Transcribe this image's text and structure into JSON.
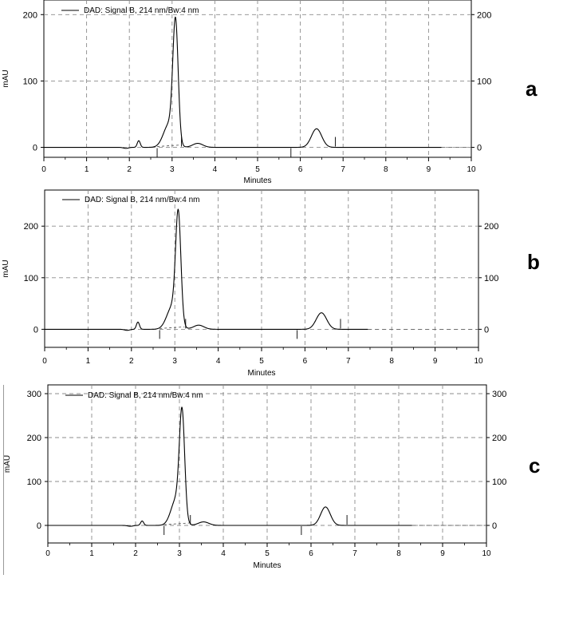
{
  "panel_labels": [
    "a",
    "b",
    "c"
  ],
  "chart_data": [
    {
      "type": "line",
      "panel": "a",
      "legend": "DAD: Signal B, 214 nm/Bw:4 nm",
      "xlabel": "Minutes",
      "ylabel": "mAU",
      "xlim": [
        0,
        10
      ],
      "ylim": [
        -15,
        222
      ],
      "x_ticks": [
        0,
        1,
        2,
        3,
        4,
        5,
        6,
        7,
        8,
        9,
        10
      ],
      "y_ticks": [
        0,
        100,
        200
      ],
      "grid": true,
      "trace_end": 9.3,
      "series": [
        {
          "name": "DAD: Signal B, 214 nm/Bw:4 nm",
          "peaks": [
            {
              "rt": 2.22,
              "height": 10,
              "sigma": 0.035
            },
            {
              "rt": 2.93,
              "height": 35,
              "sigma": 0.13
            },
            {
              "rt": 3.08,
              "height": 178,
              "sigma": 0.062
            },
            {
              "rt": 3.6,
              "height": 6,
              "sigma": 0.12
            },
            {
              "rt": 6.38,
              "height": 28,
              "sigma": 0.12
            }
          ],
          "dip": {
            "rt": 1.92,
            "depth": -1.5,
            "sigma": 0.06
          }
        }
      ],
      "integration_marks": [
        2.65,
        3.22,
        5.78,
        6.82
      ]
    },
    {
      "type": "line",
      "panel": "b",
      "legend": "DAD: Signal B, 214 nm/Bw:4 nm",
      "xlabel": "Minutes",
      "ylabel": "mAU",
      "xlim": [
        0,
        10
      ],
      "ylim": [
        -35,
        270
      ],
      "x_ticks": [
        0,
        1,
        2,
        3,
        4,
        5,
        6,
        7,
        8,
        9,
        10
      ],
      "y_ticks": [
        0,
        100,
        200
      ],
      "grid": true,
      "trace_end": 7.45,
      "series": [
        {
          "name": "DAD: Signal B, 214 nm/Bw:4 nm",
          "peaks": [
            {
              "rt": 2.15,
              "height": 14,
              "sigma": 0.035
            },
            {
              "rt": 2.95,
              "height": 45,
              "sigma": 0.13
            },
            {
              "rt": 3.08,
              "height": 205,
              "sigma": 0.06
            },
            {
              "rt": 3.55,
              "height": 8,
              "sigma": 0.12
            },
            {
              "rt": 6.38,
              "height": 32,
              "sigma": 0.12
            }
          ],
          "dip": {
            "rt": 1.9,
            "depth": -2,
            "sigma": 0.06
          }
        }
      ],
      "integration_marks": [
        2.65,
        3.25,
        5.82,
        6.82
      ]
    },
    {
      "type": "line",
      "panel": "c",
      "legend": "DAD: Signal B, 214 nm/Bw:4 nm",
      "xlabel": "Minutes",
      "ylabel": "mAU",
      "xlim": [
        0,
        10
      ],
      "ylim": [
        -40,
        320
      ],
      "x_ticks": [
        0,
        1,
        2,
        3,
        4,
        5,
        6,
        7,
        8,
        9,
        10
      ],
      "y_ticks": [
        0,
        100,
        200,
        300
      ],
      "grid": true,
      "trace_end": 8.3,
      "series": [
        {
          "name": "DAD: Signal B, 214 nm/Bw:4 nm",
          "peaks": [
            {
              "rt": 2.15,
              "height": 10,
              "sigma": 0.035
            },
            {
              "rt": 2.93,
              "height": 60,
              "sigma": 0.12
            },
            {
              "rt": 3.06,
              "height": 235,
              "sigma": 0.06
            },
            {
              "rt": 3.55,
              "height": 8,
              "sigma": 0.12
            },
            {
              "rt": 6.33,
              "height": 42,
              "sigma": 0.11
            }
          ],
          "dip": {
            "rt": 1.88,
            "depth": -2,
            "sigma": 0.06
          }
        }
      ],
      "integration_marks": [
        2.65,
        3.25,
        5.78,
        6.82
      ]
    }
  ]
}
